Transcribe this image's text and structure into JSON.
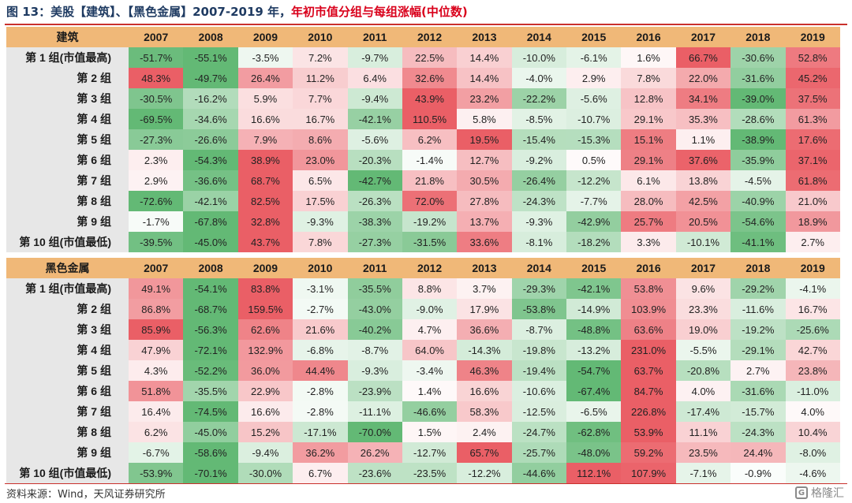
{
  "title": {
    "prefix": "图 13：美股【建筑】、【黑色金属】2007-2019 年，",
    "highlight": "年初市值分组与每组涨幅(中位数)"
  },
  "sections": [
    {
      "name": "建筑",
      "years": [
        "2007",
        "2008",
        "2009",
        "2010",
        "2011",
        "2012",
        "2013",
        "2014",
        "2015",
        "2016",
        "2017",
        "2018",
        "2019"
      ],
      "rows": [
        {
          "label": "第 1 组(市值最高)",
          "values": [
            "-51.7%",
            "-55.1%",
            "-3.5%",
            "7.2%",
            "-9.7%",
            "22.5%",
            "14.4%",
            "-10.0%",
            "-6.1%",
            "1.6%",
            "66.7%",
            "-30.6%",
            "52.8%"
          ]
        },
        {
          "label": "第 2 组",
          "values": [
            "48.3%",
            "-49.7%",
            "26.4%",
            "11.2%",
            "6.4%",
            "32.6%",
            "14.4%",
            "-4.0%",
            "2.9%",
            "7.8%",
            "22.0%",
            "-31.6%",
            "45.2%"
          ]
        },
        {
          "label": "第 3 组",
          "values": [
            "-30.5%",
            "-16.2%",
            "5.9%",
            "7.7%",
            "-9.4%",
            "43.9%",
            "23.2%",
            "-22.2%",
            "-5.6%",
            "12.8%",
            "34.1%",
            "-39.0%",
            "37.5%"
          ]
        },
        {
          "label": "第 4 组",
          "values": [
            "-69.5%",
            "-34.6%",
            "16.6%",
            "16.7%",
            "-42.1%",
            "110.5%",
            "5.8%",
            "-8.5%",
            "-10.7%",
            "29.1%",
            "35.3%",
            "-28.6%",
            "61.3%"
          ]
        },
        {
          "label": "第 5 组",
          "values": [
            "-27.3%",
            "-26.6%",
            "7.9%",
            "8.6%",
            "-5.6%",
            "6.2%",
            "19.5%",
            "-15.4%",
            "-15.3%",
            "15.1%",
            "1.1%",
            "-38.9%",
            "17.6%"
          ]
        },
        {
          "label": "第 6 组",
          "values": [
            "2.3%",
            "-54.3%",
            "38.9%",
            "23.0%",
            "-20.3%",
            "-1.4%",
            "12.7%",
            "-9.2%",
            "0.5%",
            "29.1%",
            "37.6%",
            "-35.9%",
            "37.1%"
          ]
        },
        {
          "label": "第 7 组",
          "values": [
            "2.9%",
            "-36.6%",
            "68.7%",
            "6.5%",
            "-42.7%",
            "21.8%",
            "30.5%",
            "-26.4%",
            "-12.2%",
            "6.1%",
            "13.8%",
            "-4.5%",
            "61.8%"
          ]
        },
        {
          "label": "第 8 组",
          "values": [
            "-72.6%",
            "-42.1%",
            "82.5%",
            "17.5%",
            "-26.3%",
            "72.0%",
            "27.8%",
            "-24.3%",
            "-7.7%",
            "28.0%",
            "42.5%",
            "-40.9%",
            "21.0%"
          ]
        },
        {
          "label": "第 9 组",
          "values": [
            "-1.7%",
            "-67.8%",
            "32.8%",
            "-9.3%",
            "-38.3%",
            "-19.2%",
            "13.7%",
            "-9.3%",
            "-42.9%",
            "25.7%",
            "20.5%",
            "-54.6%",
            "18.9%"
          ]
        },
        {
          "label": "第 10 组(市值最低)",
          "values": [
            "-39.5%",
            "-45.0%",
            "43.7%",
            "7.8%",
            "-27.3%",
            "-31.5%",
            "33.6%",
            "-8.1%",
            "-18.2%",
            "3.3%",
            "-10.1%",
            "-41.1%",
            "2.7%"
          ]
        }
      ]
    },
    {
      "name": "黑色金属",
      "years": [
        "2007",
        "2008",
        "2009",
        "2010",
        "2011",
        "2012",
        "2013",
        "2014",
        "2015",
        "2016",
        "2017",
        "2018",
        "2019"
      ],
      "rows": [
        {
          "label": "第 1 组(市值最高)",
          "values": [
            "49.1%",
            "-54.1%",
            "83.8%",
            "-3.1%",
            "-35.5%",
            "8.8%",
            "3.7%",
            "-29.3%",
            "-42.1%",
            "53.8%",
            "9.6%",
            "-29.2%",
            "-4.1%"
          ]
        },
        {
          "label": "第 2 组",
          "values": [
            "86.8%",
            "-68.7%",
            "159.5%",
            "-2.7%",
            "-43.0%",
            "-9.0%",
            "17.9%",
            "-53.8%",
            "-14.9%",
            "103.9%",
            "23.3%",
            "-11.6%",
            "16.7%"
          ]
        },
        {
          "label": "第 3 组",
          "values": [
            "85.9%",
            "-56.3%",
            "62.6%",
            "21.6%",
            "-40.2%",
            "4.7%",
            "36.6%",
            "-8.7%",
            "-48.8%",
            "63.6%",
            "19.0%",
            "-19.2%",
            "-25.6%"
          ]
        },
        {
          "label": "第 4 组",
          "values": [
            "47.9%",
            "-72.1%",
            "132.9%",
            "-6.8%",
            "-8.7%",
            "64.0%",
            "-14.3%",
            "-19.8%",
            "-13.2%",
            "231.0%",
            "-5.5%",
            "-29.1%",
            "42.7%"
          ]
        },
        {
          "label": "第 5 组",
          "values": [
            "4.3%",
            "-52.2%",
            "36.0%",
            "44.4%",
            "-9.3%",
            "-3.4%",
            "46.3%",
            "-19.4%",
            "-54.7%",
            "63.7%",
            "-20.8%",
            "2.7%",
            "23.8%"
          ]
        },
        {
          "label": "第 6 组",
          "values": [
            "51.8%",
            "-35.5%",
            "22.9%",
            "-2.8%",
            "-23.9%",
            "1.4%",
            "16.6%",
            "-10.6%",
            "-67.4%",
            "84.7%",
            "4.0%",
            "-31.6%",
            "-11.0%"
          ]
        },
        {
          "label": "第 7 组",
          "values": [
            "16.4%",
            "-74.5%",
            "16.6%",
            "-2.8%",
            "-11.1%",
            "-46.6%",
            "58.3%",
            "-12.5%",
            "-6.5%",
            "226.8%",
            "-17.4%",
            "-15.7%",
            "4.0%"
          ]
        },
        {
          "label": "第 8 组",
          "values": [
            "6.2%",
            "-45.0%",
            "15.2%",
            "-17.1%",
            "-70.0%",
            "1.5%",
            "2.4%",
            "-24.7%",
            "-62.8%",
            "53.9%",
            "11.1%",
            "-24.3%",
            "10.4%"
          ]
        },
        {
          "label": "第 9 组",
          "values": [
            "-6.7%",
            "-58.6%",
            "-9.4%",
            "36.2%",
            "26.2%",
            "-12.7%",
            "65.7%",
            "-25.7%",
            "-48.0%",
            "59.2%",
            "23.5%",
            "24.4%",
            "-8.0%"
          ]
        },
        {
          "label": "第 10 组(市值最低)",
          "values": [
            "-53.9%",
            "-70.1%",
            "-30.0%",
            "6.7%",
            "-23.6%",
            "-23.5%",
            "-12.2%",
            "-44.6%",
            "112.1%",
            "107.9%",
            "-7.1%",
            "-0.9%",
            "-4.6%"
          ]
        }
      ]
    }
  ],
  "source": "资料来源：Wind，天风证券研究所",
  "watermark": "格隆汇",
  "watermark_logo": "G",
  "colors": {
    "header_bg": "#f0b878",
    "label_bg": "#e7e7e7",
    "title_text": "#1f3b62",
    "title_highlight": "#d9001b",
    "rule": "#c9302c",
    "red_max": "#ea5f66",
    "green_max": "#63b975",
    "neutral": "#ffffff"
  }
}
